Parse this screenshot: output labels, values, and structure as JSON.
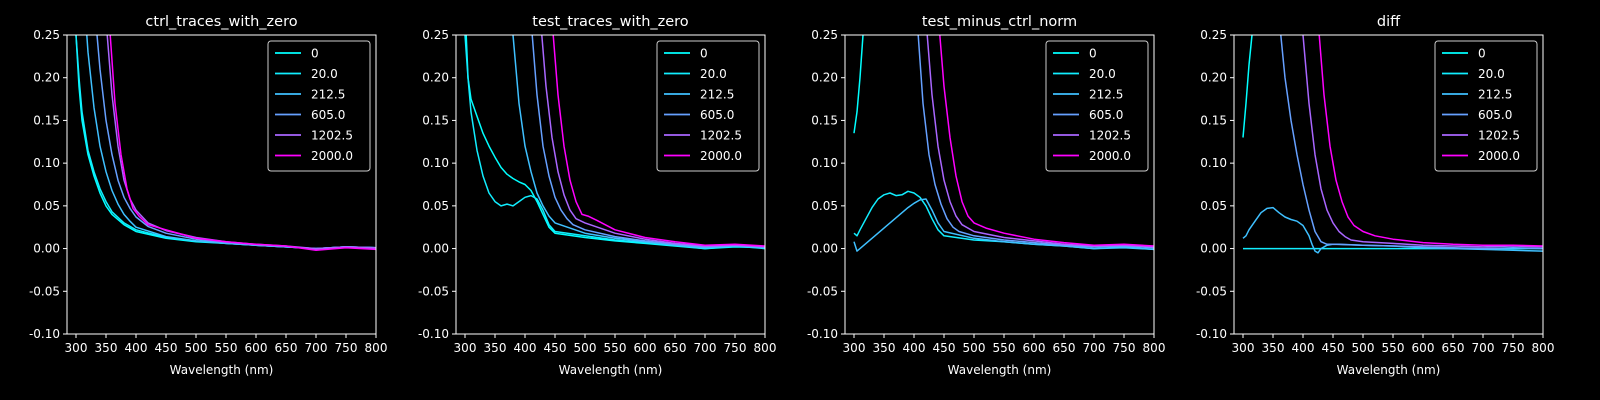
{
  "colors": {
    "background": "#000000",
    "axes": "#ffffff",
    "text": "#ffffff"
  },
  "series_colors": [
    "#00ffff",
    "#11eeff",
    "#3fc0ff",
    "#66a0ff",
    "#a966ff",
    "#ff00ff"
  ],
  "chart_data": [
    {
      "type": "line",
      "title": "ctrl_traces_with_zero",
      "xlabel": "Wavelength (nm)",
      "ylabel": "",
      "xlim": [
        285,
        800
      ],
      "ylim": [
        -0.1,
        0.25
      ],
      "xticks": [
        300,
        350,
        400,
        450,
        500,
        550,
        600,
        650,
        700,
        750,
        800
      ],
      "yticks": [
        -0.1,
        -0.05,
        0.0,
        0.05,
        0.1,
        0.15,
        0.2,
        0.25
      ],
      "legend": "top-right",
      "grid": false,
      "series": [
        {
          "name": "0",
          "x": [
            300,
            305,
            310,
            320,
            330,
            340,
            350,
            360,
            380,
            400,
            450,
            500,
            550,
            600,
            650,
            700,
            750,
            800
          ],
          "y": [
            0.25,
            0.19,
            0.15,
            0.11,
            0.085,
            0.065,
            0.05,
            0.04,
            0.028,
            0.02,
            0.012,
            0.008,
            0.006,
            0.004,
            0.002,
            0.0,
            0.002,
            0.001
          ]
        },
        {
          "name": "20.0",
          "x": [
            300,
            305,
            310,
            320,
            330,
            340,
            350,
            360,
            380,
            400,
            450,
            500,
            550,
            600,
            650,
            700,
            750,
            800
          ],
          "y": [
            0.25,
            0.2,
            0.16,
            0.115,
            0.09,
            0.07,
            0.055,
            0.043,
            0.03,
            0.022,
            0.013,
            0.009,
            0.006,
            0.004,
            0.002,
            0.0,
            0.002,
            0.001
          ]
        },
        {
          "name": "212.5",
          "x": [
            318,
            320,
            330,
            340,
            350,
            360,
            370,
            380,
            390,
            400,
            450,
            500,
            550,
            600,
            650,
            700,
            750,
            800
          ],
          "y": [
            0.25,
            0.23,
            0.165,
            0.12,
            0.09,
            0.068,
            0.052,
            0.04,
            0.032,
            0.025,
            0.014,
            0.009,
            0.006,
            0.004,
            0.002,
            0.0,
            0.002,
            0.001
          ]
        },
        {
          "name": "605.0",
          "x": [
            335,
            340,
            350,
            360,
            370,
            380,
            390,
            400,
            420,
            450,
            500,
            550,
            600,
            650,
            700,
            750,
            800
          ],
          "y": [
            0.25,
            0.21,
            0.15,
            0.11,
            0.08,
            0.06,
            0.047,
            0.037,
            0.026,
            0.018,
            0.011,
            0.007,
            0.004,
            0.002,
            0.0,
            0.002,
            0.001
          ]
        },
        {
          "name": "1202.5",
          "x": [
            352,
            360,
            370,
            380,
            390,
            400,
            420,
            450,
            500,
            550,
            600,
            650,
            700,
            750,
            800
          ],
          "y": [
            0.25,
            0.18,
            0.12,
            0.08,
            0.058,
            0.045,
            0.03,
            0.021,
            0.013,
            0.008,
            0.005,
            0.003,
            0.0,
            0.002,
            0.001
          ]
        },
        {
          "name": "2000.0",
          "x": [
            357,
            365,
            375,
            385,
            395,
            405,
            420,
            450,
            480,
            500,
            550,
            600,
            650,
            700,
            750,
            800
          ],
          "y": [
            0.25,
            0.17,
            0.11,
            0.07,
            0.047,
            0.038,
            0.028,
            0.022,
            0.016,
            0.012,
            0.008,
            0.005,
            0.003,
            -0.002,
            0.001,
            -0.001
          ]
        }
      ]
    },
    {
      "type": "line",
      "title": "test_traces_with_zero",
      "xlabel": "Wavelength (nm)",
      "ylabel": "",
      "xlim": [
        285,
        800
      ],
      "ylim": [
        -0.1,
        0.25
      ],
      "xticks": [
        300,
        350,
        400,
        450,
        500,
        550,
        600,
        650,
        700,
        750,
        800
      ],
      "yticks": [
        -0.1,
        -0.05,
        0.0,
        0.05,
        0.1,
        0.15,
        0.2,
        0.25
      ],
      "legend": "top-right",
      "grid": false,
      "series": [
        {
          "name": "0",
          "x": [
            302,
            305,
            310,
            320,
            330,
            340,
            350,
            360,
            370,
            380,
            390,
            400,
            410,
            420,
            430,
            440,
            450,
            500,
            550,
            600,
            650,
            700,
            750,
            800
          ],
          "y": [
            0.25,
            0.2,
            0.175,
            0.155,
            0.135,
            0.12,
            0.107,
            0.095,
            0.087,
            0.082,
            0.078,
            0.075,
            0.068,
            0.055,
            0.04,
            0.025,
            0.018,
            0.013,
            0.009,
            0.006,
            0.003,
            0.0,
            0.002,
            0.001
          ]
        },
        {
          "name": "20.0",
          "x": [
            300,
            305,
            310,
            320,
            330,
            340,
            350,
            360,
            370,
            380,
            390,
            400,
            410,
            420,
            430,
            440,
            450,
            500,
            550,
            600,
            650,
            700,
            750,
            800
          ],
          "y": [
            0.25,
            0.2,
            0.16,
            0.115,
            0.085,
            0.065,
            0.055,
            0.05,
            0.052,
            0.05,
            0.055,
            0.06,
            0.062,
            0.058,
            0.045,
            0.028,
            0.02,
            0.015,
            0.01,
            0.007,
            0.004,
            0.0,
            0.003,
            0.0
          ]
        },
        {
          "name": "212.5",
          "x": [
            380,
            390,
            400,
            410,
            420,
            430,
            440,
            450,
            500,
            550,
            600,
            650,
            700,
            750,
            800
          ],
          "y": [
            0.25,
            0.17,
            0.12,
            0.09,
            0.065,
            0.05,
            0.038,
            0.03,
            0.018,
            0.012,
            0.008,
            0.004,
            0.001,
            0.003,
            0.001
          ]
        },
        {
          "name": "605.0",
          "x": [
            412,
            420,
            430,
            440,
            450,
            460,
            470,
            480,
            500,
            550,
            600,
            650,
            700,
            750,
            800
          ],
          "y": [
            0.25,
            0.18,
            0.12,
            0.085,
            0.06,
            0.045,
            0.035,
            0.028,
            0.022,
            0.014,
            0.009,
            0.005,
            0.002,
            0.004,
            0.002
          ]
        },
        {
          "name": "1202.5",
          "x": [
            428,
            435,
            445,
            455,
            465,
            475,
            485,
            500,
            550,
            600,
            650,
            700,
            750,
            800
          ],
          "y": [
            0.25,
            0.19,
            0.13,
            0.09,
            0.063,
            0.045,
            0.035,
            0.03,
            0.018,
            0.011,
            0.006,
            0.003,
            0.004,
            0.002
          ]
        },
        {
          "name": "2000.0",
          "x": [
            447,
            455,
            465,
            475,
            485,
            495,
            505,
            520,
            550,
            600,
            650,
            700,
            750,
            800
          ],
          "y": [
            0.25,
            0.18,
            0.12,
            0.08,
            0.055,
            0.04,
            0.038,
            0.033,
            0.022,
            0.013,
            0.008,
            0.004,
            0.005,
            0.003
          ]
        }
      ]
    },
    {
      "type": "line",
      "title": "test_minus_ctrl_norm",
      "xlabel": "Wavelength (nm)",
      "ylabel": "",
      "xlim": [
        285,
        800
      ],
      "ylim": [
        -0.1,
        0.25
      ],
      "xticks": [
        300,
        350,
        400,
        450,
        500,
        550,
        600,
        650,
        700,
        750,
        800
      ],
      "yticks": [
        -0.1,
        -0.05,
        0.0,
        0.05,
        0.1,
        0.15,
        0.2,
        0.25
      ],
      "legend": "top-right",
      "grid": false,
      "series": [
        {
          "name": "0",
          "x": [
            300,
            305,
            310,
            315
          ],
          "y": [
            0.135,
            0.16,
            0.2,
            0.25
          ]
        },
        {
          "name": "20.0",
          "x": [
            300,
            305,
            310,
            320,
            330,
            340,
            350,
            360,
            370,
            380,
            390,
            400,
            410,
            420,
            430,
            440,
            450,
            500,
            550,
            600,
            650,
            700,
            750,
            800
          ],
          "y": [
            0.018,
            0.015,
            0.022,
            0.035,
            0.048,
            0.058,
            0.063,
            0.065,
            0.062,
            0.063,
            0.067,
            0.065,
            0.06,
            0.05,
            0.035,
            0.022,
            0.015,
            0.01,
            0.008,
            0.005,
            0.003,
            0.0,
            0.002,
            -0.001
          ]
        },
        {
          "name": "212.5",
          "x": [
            300,
            305,
            310,
            320,
            330,
            340,
            350,
            360,
            370,
            380,
            390,
            400,
            410,
            420,
            430,
            440,
            450,
            500,
            550,
            600,
            650,
            700,
            750,
            800
          ],
          "y": [
            0.008,
            -0.003,
            0.0,
            0.006,
            0.012,
            0.018,
            0.024,
            0.03,
            0.036,
            0.042,
            0.048,
            0.053,
            0.057,
            0.058,
            0.045,
            0.03,
            0.02,
            0.012,
            0.008,
            0.005,
            0.003,
            0.0,
            0.001,
            -0.001
          ]
        },
        {
          "name": "605.0",
          "x": [
            407,
            415,
            425,
            435,
            445,
            455,
            465,
            475,
            500,
            550,
            600,
            650,
            700,
            750,
            800
          ],
          "y": [
            0.25,
            0.17,
            0.11,
            0.075,
            0.052,
            0.035,
            0.025,
            0.02,
            0.015,
            0.01,
            0.007,
            0.004,
            0.002,
            0.003,
            0.001
          ]
        },
        {
          "name": "1202.5",
          "x": [
            422,
            430,
            440,
            450,
            460,
            470,
            480,
            500,
            550,
            600,
            650,
            700,
            750,
            800
          ],
          "y": [
            0.25,
            0.18,
            0.12,
            0.08,
            0.055,
            0.038,
            0.028,
            0.02,
            0.013,
            0.009,
            0.005,
            0.003,
            0.004,
            0.002
          ]
        },
        {
          "name": "2000.0",
          "x": [
            443,
            450,
            460,
            470,
            480,
            490,
            500,
            520,
            550,
            600,
            650,
            700,
            750,
            800
          ],
          "y": [
            0.25,
            0.19,
            0.13,
            0.085,
            0.055,
            0.038,
            0.03,
            0.024,
            0.018,
            0.011,
            0.007,
            0.004,
            0.005,
            0.003
          ]
        }
      ]
    },
    {
      "type": "line",
      "title": "diff",
      "xlabel": "Wavelength (nm)",
      "ylabel": "",
      "xlim": [
        285,
        800
      ],
      "ylim": [
        -0.1,
        0.25
      ],
      "xticks": [
        300,
        350,
        400,
        450,
        500,
        550,
        600,
        650,
        700,
        750,
        800
      ],
      "yticks": [
        -0.1,
        -0.05,
        0.0,
        0.05,
        0.1,
        0.15,
        0.2,
        0.25
      ],
      "legend": "top-right",
      "grid": false,
      "series": [
        {
          "name": "0",
          "x": [
            300,
            305,
            310,
            315
          ],
          "y": [
            0.13,
            0.17,
            0.215,
            0.25
          ]
        },
        {
          "name": "20.0",
          "x": [
            300,
            800
          ],
          "y": [
            0.0,
            0.0
          ]
        },
        {
          "name": "212.5",
          "x": [
            300,
            305,
            310,
            320,
            330,
            340,
            350,
            360,
            370,
            380,
            390,
            400,
            410,
            415,
            420,
            425,
            430,
            440,
            450,
            500,
            550,
            600,
            650,
            700,
            750,
            800
          ],
          "y": [
            0.012,
            0.015,
            0.022,
            0.032,
            0.042,
            0.047,
            0.048,
            0.042,
            0.037,
            0.034,
            0.032,
            0.027,
            0.015,
            0.005,
            -0.003,
            -0.005,
            0.0,
            0.004,
            0.005,
            0.004,
            0.003,
            0.001,
            0.0,
            -0.001,
            -0.002,
            -0.003
          ]
        },
        {
          "name": "605.0",
          "x": [
            363,
            370,
            380,
            390,
            400,
            410,
            420,
            430,
            440,
            450,
            460,
            500,
            550,
            600,
            650,
            700,
            750,
            800
          ],
          "y": [
            0.25,
            0.2,
            0.15,
            0.11,
            0.075,
            0.045,
            0.02,
            0.008,
            0.005,
            0.005,
            0.005,
            0.004,
            0.003,
            0.002,
            0.001,
            0.0,
            0.001,
            0.0
          ]
        },
        {
          "name": "1202.5",
          "x": [
            400,
            410,
            420,
            430,
            440,
            450,
            460,
            470,
            480,
            500,
            550,
            600,
            650,
            700,
            750,
            800
          ],
          "y": [
            0.25,
            0.17,
            0.11,
            0.07,
            0.045,
            0.03,
            0.02,
            0.014,
            0.01,
            0.008,
            0.006,
            0.004,
            0.003,
            0.002,
            0.003,
            0.002
          ]
        },
        {
          "name": "2000.0",
          "x": [
            427,
            435,
            445,
            455,
            465,
            475,
            485,
            500,
            520,
            550,
            600,
            650,
            700,
            750,
            800
          ],
          "y": [
            0.25,
            0.18,
            0.12,
            0.08,
            0.055,
            0.037,
            0.027,
            0.02,
            0.015,
            0.011,
            0.007,
            0.005,
            0.004,
            0.004,
            0.003
          ]
        }
      ]
    }
  ]
}
